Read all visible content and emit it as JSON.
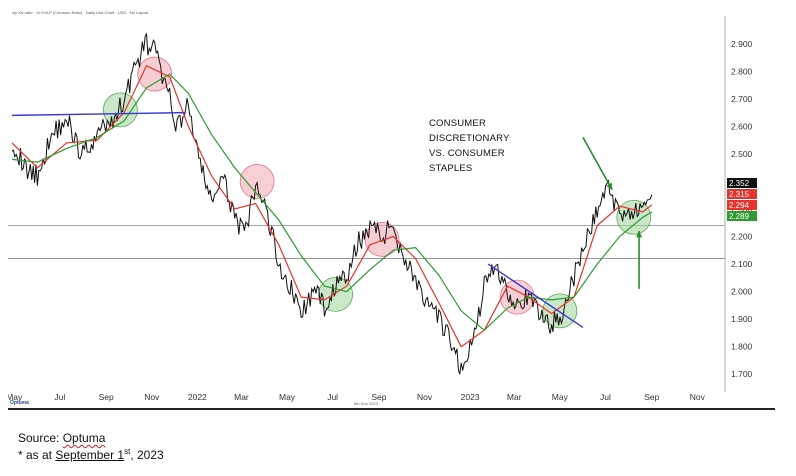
{
  "header": {
    "title": "xly Xlv ratio · XLY/XLP (Common Ratio) · Daily Line Chart · USD · No Layout"
  },
  "annotation": {
    "text": "CONSUMER\nDISCRETIONARY\nVS. CONSUMER\nSTAPLES"
  },
  "footer": {
    "logo": "Optuma",
    "date": "8th Sep 2023",
    "source_prefix": "Source: ",
    "source_name": "Optuma",
    "asof_prefix": "* as at ",
    "asof_date": "September 1",
    "asof_sup": "st",
    "asof_year": ", 2023"
  },
  "colors": {
    "price": "#111111",
    "fast_ma": "#e8322d",
    "slow_ma": "#2f9a2f",
    "trendline": "#3a3ad6",
    "arrow": "#2b8a2b",
    "circle_green": "#9fd49a",
    "circle_red": "#f2a6b2"
  },
  "chart_data": {
    "type": "line",
    "title": "",
    "xlabel": "",
    "ylabel": "",
    "ylim": [
      1.65,
      2.95
    ],
    "yticks": [
      1.7,
      1.8,
      1.9,
      2.0,
      2.1,
      2.2,
      2.3,
      2.4,
      2.5,
      2.6,
      2.7,
      2.8,
      2.9
    ],
    "ytick_labels": [
      "1.700",
      "1.800",
      "1.900",
      "2.000",
      "2.100",
      "2.200",
      "2.300",
      "2.400",
      "2.500",
      "2.600",
      "2.700",
      "2.800",
      "2.900"
    ],
    "xtick_labels": [
      {
        "label": "May",
        "x": "2021-05-01"
      },
      {
        "label": "Jul",
        "x": "2021-07-01"
      },
      {
        "label": "Sep",
        "x": "2021-09-01"
      },
      {
        "label": "Nov",
        "x": "2021-11-01"
      },
      {
        "label": "2022",
        "x": "2022-01-01"
      },
      {
        "label": "Mar",
        "x": "2022-03-01"
      },
      {
        "label": "May",
        "x": "2022-05-01"
      },
      {
        "label": "Jul",
        "x": "2022-07-01"
      },
      {
        "label": "Sep",
        "x": "2022-09-01"
      },
      {
        "label": "Nov",
        "x": "2022-11-01"
      },
      {
        "label": "2023",
        "x": "2023-01-01"
      },
      {
        "label": "Mar",
        "x": "2023-03-01"
      },
      {
        "label": "May",
        "x": "2023-05-01"
      },
      {
        "label": "Jul",
        "x": "2023-07-01"
      },
      {
        "label": "Sep",
        "x": "2023-09-01"
      },
      {
        "label": "Nov",
        "x": "2023-11-01"
      }
    ],
    "xlim": [
      "2021-04-28",
      "2023-12-08"
    ],
    "series": [
      {
        "x": [
          "2021-04-28",
          "2021-05-15",
          "2021-06-01",
          "2021-06-20",
          "2021-07-10",
          "2021-07-30",
          "2021-08-20",
          "2021-09-10",
          "2021-09-25",
          "2021-10-10",
          "2021-10-25",
          "2021-11-05",
          "2021-11-15",
          "2021-11-25",
          "2021-12-05",
          "2021-12-20",
          "2022-01-05",
          "2022-01-20",
          "2022-02-05",
          "2022-02-20",
          "2022-03-05",
          "2022-03-20",
          "2022-04-05",
          "2022-04-20",
          "2022-05-05",
          "2022-05-20",
          "2022-06-05",
          "2022-06-20",
          "2022-07-05",
          "2022-07-20",
          "2022-08-05",
          "2022-08-20",
          "2022-09-05",
          "2022-09-20",
          "2022-10-05",
          "2022-10-20",
          "2022-11-05",
          "2022-11-20",
          "2022-12-05",
          "2022-12-20",
          "2023-01-05",
          "2023-01-20",
          "2023-02-05",
          "2023-02-20",
          "2023-03-05",
          "2023-03-20",
          "2023-04-05",
          "2023-04-20",
          "2023-05-05",
          "2023-05-20",
          "2023-06-05",
          "2023-06-20",
          "2023-07-05",
          "2023-07-20",
          "2023-08-05",
          "2023-08-20",
          "2023-09-01"
        ],
        "values": [
          2.55,
          2.45,
          2.42,
          2.57,
          2.63,
          2.5,
          2.57,
          2.62,
          2.7,
          2.82,
          2.9,
          2.88,
          2.78,
          2.7,
          2.6,
          2.68,
          2.45,
          2.34,
          2.4,
          2.28,
          2.2,
          2.38,
          2.28,
          2.1,
          2.02,
          1.92,
          2.0,
          1.95,
          2.02,
          2.05,
          2.18,
          2.24,
          2.2,
          2.24,
          2.12,
          2.05,
          1.94,
          1.9,
          1.82,
          1.72,
          1.82,
          2.02,
          2.1,
          2.0,
          1.96,
          1.97,
          1.92,
          1.88,
          1.93,
          2.05,
          2.18,
          2.3,
          2.38,
          2.28,
          2.3,
          2.28,
          2.352
        ]
      },
      {
        "name": "",
        "x": [
          "2021-04-28",
          "2021-06-01",
          "2021-07-10",
          "2021-08-20",
          "2021-09-25",
          "2021-10-25",
          "2021-11-25",
          "2021-12-20",
          "2022-01-20",
          "2022-02-20",
          "2022-03-20",
          "2022-04-20",
          "2022-05-20",
          "2022-06-20",
          "2022-07-20",
          "2022-08-20",
          "2022-09-20",
          "2022-10-20",
          "2022-11-20",
          "2022-12-20",
          "2023-01-20",
          "2023-02-20",
          "2023-03-20",
          "2023-04-20",
          "2023-05-20",
          "2023-06-20",
          "2023-07-20",
          "2023-08-20",
          "2023-09-01"
        ],
        "values": [
          2.54,
          2.45,
          2.54,
          2.55,
          2.65,
          2.82,
          2.78,
          2.6,
          2.42,
          2.3,
          2.32,
          2.17,
          1.98,
          1.97,
          2.02,
          2.17,
          2.2,
          2.12,
          1.96,
          1.8,
          1.86,
          2.02,
          1.98,
          1.92,
          1.98,
          2.24,
          2.31,
          2.29,
          2.315
        ]
      },
      {
        "name": "",
        "x": [
          "2021-04-28",
          "2021-06-01",
          "2021-07-10",
          "2021-08-20",
          "2021-09-25",
          "2021-10-25",
          "2021-11-25",
          "2021-12-20",
          "2022-01-20",
          "2022-02-20",
          "2022-03-20",
          "2022-04-20",
          "2022-05-20",
          "2022-06-20",
          "2022-07-20",
          "2022-08-20",
          "2022-09-20",
          "2022-10-20",
          "2022-11-20",
          "2022-12-20",
          "2023-01-20",
          "2023-02-20",
          "2023-03-20",
          "2023-04-20",
          "2023-05-20",
          "2023-06-20",
          "2023-07-20",
          "2023-08-20",
          "2023-09-01"
        ],
        "values": [
          2.48,
          2.47,
          2.52,
          2.56,
          2.62,
          2.74,
          2.79,
          2.72,
          2.57,
          2.45,
          2.36,
          2.26,
          2.13,
          2.02,
          2.0,
          2.08,
          2.15,
          2.16,
          2.06,
          1.93,
          1.86,
          1.94,
          1.98,
          1.97,
          1.98,
          2.1,
          2.2,
          2.27,
          2.289
        ]
      }
    ],
    "last_values": [
      {
        "label": "2.352",
        "color": "#111111"
      },
      {
        "label": "2.315",
        "color": "#e8322d"
      },
      {
        "label": "2.294",
        "color": "#e8322d"
      },
      {
        "label": "2.289",
        "color": "#2f9a2f"
      }
    ],
    "horizontal_lines": [
      2.24,
      2.12
    ],
    "trendlines": [
      {
        "color": "#3a3ad6",
        "from": {
          "x": "2021-04-28",
          "y": 2.64
        },
        "to": {
          "x": "2021-12-15",
          "y": 2.65
        }
      },
      {
        "color": "#3a3ad6",
        "from": {
          "x": "2023-01-25",
          "y": 2.1
        },
        "to": {
          "x": "2023-06-01",
          "y": 1.87
        }
      }
    ],
    "circles": [
      {
        "x": "2021-09-20",
        "y": 2.66,
        "color": "green"
      },
      {
        "x": "2021-11-05",
        "y": 2.79,
        "color": "red"
      },
      {
        "x": "2022-03-22",
        "y": 2.4,
        "color": "red"
      },
      {
        "x": "2022-07-05",
        "y": 1.99,
        "color": "green"
      },
      {
        "x": "2022-09-05",
        "y": 2.19,
        "color": "red"
      },
      {
        "x": "2023-03-05",
        "y": 1.98,
        "color": "red"
      },
      {
        "x": "2023-05-01",
        "y": 1.93,
        "color": "green"
      },
      {
        "x": "2023-08-08",
        "y": 2.27,
        "color": "green"
      }
    ],
    "arrows": [
      {
        "from": {
          "x": "2023-06-01",
          "y": 2.56
        },
        "to": {
          "x": "2023-07-10",
          "y": 2.37
        }
      },
      {
        "from": {
          "x": "2023-08-15",
          "y": 2.01
        },
        "to": {
          "x": "2023-08-15",
          "y": 2.22
        }
      }
    ],
    "grid": false,
    "legend": "none"
  }
}
